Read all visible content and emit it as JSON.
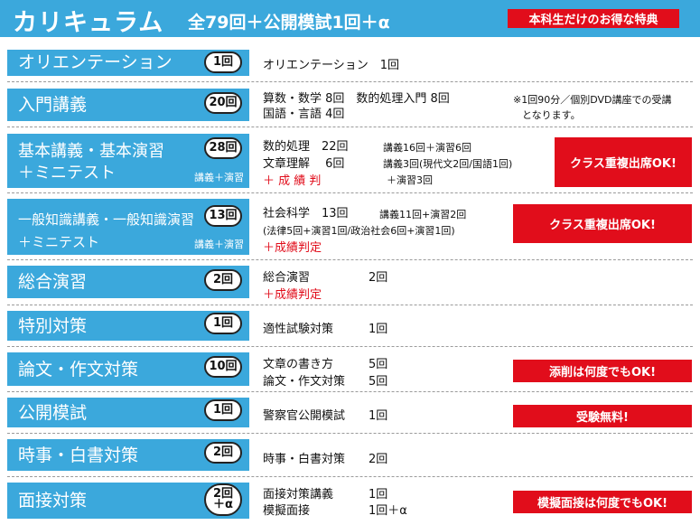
{
  "header": {
    "title": "カリキュラム",
    "subtitle": "全79回＋公開模試1回＋α",
    "badge": "本科生だけのお得な特典"
  },
  "rows": [
    {
      "category": "オリエンテーション",
      "count": "1回",
      "lines": [
        "オリエンテーション　1回"
      ]
    },
    {
      "category": "入門講義",
      "count": "20回",
      "lines": [
        "算数・数学 8回　数的処理入門 8回",
        "国語・言語 4回"
      ],
      "note": [
        "※1回90分／個別DVD講座での受講",
        "となります。"
      ]
    },
    {
      "category": "基本講義・基本演習",
      "category2": "＋ミニテスト",
      "sub": "講義＋演習",
      "count": "28回",
      "lines": [
        "数的処理　22回",
        "文章理解　 6回",
        "＋ 成 績 判"
      ],
      "details": [
        "講義16回＋演習6回",
        "講義3回(現代文2回/国語1回)",
        "＋演習3回"
      ],
      "badge": "クラス重複出席OK!"
    },
    {
      "category": "一般知識講義・一般知識演習",
      "category2": "＋ミニテスト",
      "sub": "講義＋演習",
      "count": "13回",
      "lines": [
        "社会科学　13回",
        "(法律5回+演習1回/政治社会6回+演習1回)",
        "＋成績判定"
      ],
      "details": [
        "講義11回+演習2回"
      ],
      "badge": "クラス重複出席OK!"
    },
    {
      "category": "総合演習",
      "count": "2回",
      "lines": [
        "総合演習　　　　　2回",
        "＋成績判定"
      ]
    },
    {
      "category": "特別対策",
      "count": "1回",
      "lines": [
        "適性試験対策　　　1回"
      ]
    },
    {
      "category": "論文・作文対策",
      "count": "10回",
      "lines": [
        "文章の書き方　　　5回",
        "論文・作文対策　　5回"
      ],
      "badge": "添削は何度でもOK!"
    },
    {
      "category": "公開模試",
      "count": "1回",
      "lines": [
        "警察官公開模試　　1回"
      ],
      "badge": "受験無料!"
    },
    {
      "category": "時事・白書対策",
      "count": "2回",
      "lines": [
        "時事・白書対策　　2回"
      ]
    },
    {
      "category": "面接対策",
      "count": "2回",
      "count2": "＋α",
      "lines": [
        "面接対策講義　　　1回",
        "模擬面接　　　　　1回＋α"
      ],
      "badge": "模擬面接は何度でもOK!"
    }
  ],
  "colors": {
    "blue": "#3ba8dc",
    "red": "#e10d1b"
  }
}
